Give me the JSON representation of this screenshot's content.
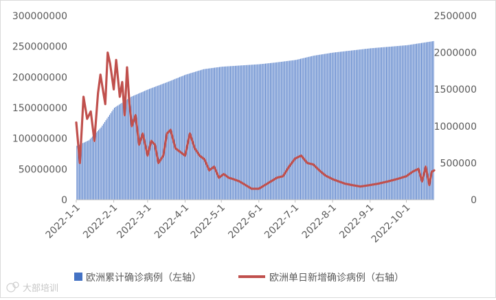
{
  "chart_data": {
    "type": "bar+line",
    "title": "",
    "left_axis": {
      "min": 0,
      "max": 300000000,
      "ticks": [
        "0",
        "50000000",
        "100000000",
        "150000000",
        "200000000",
        "250000000",
        "300000000"
      ]
    },
    "right_axis": {
      "min": 0,
      "max": 2500000,
      "ticks": [
        "0",
        "500000",
        "1000000",
        "1500000",
        "2000000",
        "2500000"
      ]
    },
    "x_ticks": [
      "2022-1-1",
      "2022-2-1",
      "2022-3-1",
      "2022-4-1",
      "2022-5-1",
      "2022-6-1",
      "2022-7-1",
      "2022-8-1",
      "2022-9-1",
      "2022-10-1"
    ],
    "x_tick_days": [
      0,
      31,
      59,
      90,
      120,
      151,
      181,
      212,
      243,
      273
    ],
    "total_days": 296,
    "grid": false,
    "legend_position": "bottom",
    "series": [
      {
        "name": "欧洲累计确诊病例（左轴）",
        "kind": "bar",
        "axis": "left",
        "color": "#4472c4",
        "anchors": [
          [
            0,
            88000000
          ],
          [
            10,
            97000000
          ],
          [
            20,
            118000000
          ],
          [
            31,
            150000000
          ],
          [
            45,
            168000000
          ],
          [
            59,
            180000000
          ],
          [
            75,
            192000000
          ],
          [
            90,
            204000000
          ],
          [
            105,
            213000000
          ],
          [
            120,
            217000000
          ],
          [
            151,
            221000000
          ],
          [
            165,
            224000000
          ],
          [
            181,
            228000000
          ],
          [
            196,
            235000000
          ],
          [
            212,
            240000000
          ],
          [
            243,
            247000000
          ],
          [
            273,
            252000000
          ],
          [
            296,
            259000000
          ]
        ]
      },
      {
        "name": "欧洲单日新增确诊病例（右轴）",
        "kind": "line",
        "axis": "right",
        "color": "#c0504d",
        "anchors": [
          [
            0,
            1050000
          ],
          [
            3,
            500000
          ],
          [
            6,
            1400000
          ],
          [
            9,
            1100000
          ],
          [
            12,
            1200000
          ],
          [
            15,
            800000
          ],
          [
            18,
            1450000
          ],
          [
            20,
            1700000
          ],
          [
            24,
            1300000
          ],
          [
            26,
            2000000
          ],
          [
            28,
            1850000
          ],
          [
            31,
            1500000
          ],
          [
            33,
            1900000
          ],
          [
            36,
            1400000
          ],
          [
            38,
            1600000
          ],
          [
            40,
            1150000
          ],
          [
            42,
            1800000
          ],
          [
            44,
            1300000
          ],
          [
            46,
            1000000
          ],
          [
            49,
            1150000
          ],
          [
            52,
            750000
          ],
          [
            55,
            900000
          ],
          [
            59,
            600000
          ],
          [
            62,
            800000
          ],
          [
            65,
            750000
          ],
          [
            68,
            500000
          ],
          [
            72,
            600000
          ],
          [
            75,
            900000
          ],
          [
            78,
            950000
          ],
          [
            82,
            700000
          ],
          [
            86,
            650000
          ],
          [
            90,
            600000
          ],
          [
            94,
            900000
          ],
          [
            98,
            700000
          ],
          [
            102,
            600000
          ],
          [
            106,
            550000
          ],
          [
            110,
            400000
          ],
          [
            114,
            450000
          ],
          [
            118,
            300000
          ],
          [
            122,
            350000
          ],
          [
            126,
            300000
          ],
          [
            130,
            280000
          ],
          [
            135,
            250000
          ],
          [
            140,
            200000
          ],
          [
            145,
            150000
          ],
          [
            151,
            150000
          ],
          [
            156,
            200000
          ],
          [
            161,
            250000
          ],
          [
            166,
            300000
          ],
          [
            171,
            320000
          ],
          [
            176,
            450000
          ],
          [
            181,
            560000
          ],
          [
            186,
            600000
          ],
          [
            191,
            500000
          ],
          [
            196,
            480000
          ],
          [
            201,
            400000
          ],
          [
            206,
            330000
          ],
          [
            212,
            280000
          ],
          [
            217,
            250000
          ],
          [
            222,
            220000
          ],
          [
            228,
            200000
          ],
          [
            235,
            180000
          ],
          [
            243,
            200000
          ],
          [
            250,
            220000
          ],
          [
            258,
            250000
          ],
          [
            265,
            280000
          ],
          [
            273,
            320000
          ],
          [
            278,
            380000
          ],
          [
            283,
            420000
          ],
          [
            286,
            250000
          ],
          [
            289,
            450000
          ],
          [
            292,
            200000
          ],
          [
            294,
            380000
          ],
          [
            296,
            400000
          ]
        ]
      }
    ],
    "watermark": "大部培训"
  }
}
